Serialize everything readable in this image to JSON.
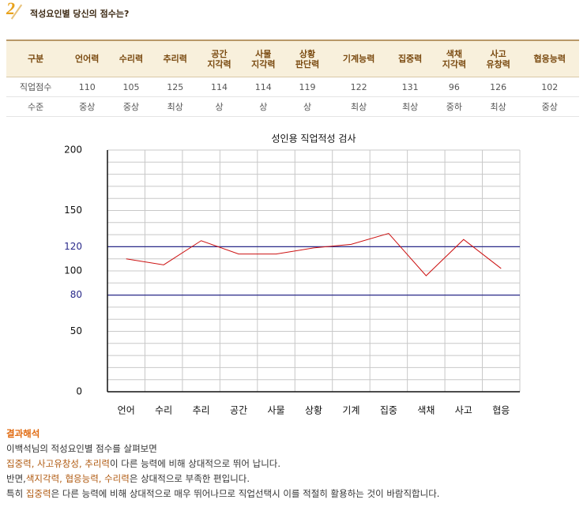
{
  "header": {
    "number": "2",
    "title": "적성요인별 당신의 점수는?"
  },
  "table": {
    "columns": [
      "구분",
      "언어력",
      "수리력",
      "추리력",
      "공간\n지각력",
      "사물\n지각력",
      "상황\n판단력",
      "기계능력",
      "집중력",
      "색채\n지각력",
      "사고\n유창력",
      "협응능력"
    ],
    "rows": [
      [
        "직업점수",
        110,
        105,
        125,
        114,
        114,
        119,
        122,
        131,
        96,
        126,
        102
      ],
      [
        "수준",
        "중상",
        "중상",
        "최상",
        "상",
        "상",
        "상",
        "최상",
        "최상",
        "중하",
        "최상",
        "중상"
      ]
    ]
  },
  "chart_data": {
    "type": "line",
    "title": "성인용 직업적성 검사",
    "categories": [
      "언어",
      "수리",
      "추리",
      "공간",
      "사물",
      "상황",
      "기계",
      "집중",
      "색채",
      "사고",
      "협응"
    ],
    "series": [
      {
        "name": "직업점수",
        "color": "#cc1111",
        "values": [
          110,
          105,
          125,
          114,
          114,
          119,
          122,
          131,
          96,
          126,
          102
        ]
      }
    ],
    "ylim": [
      0,
      200
    ],
    "yticks": [
      0,
      50,
      100,
      150,
      200
    ],
    "minor_yticks": [
      10,
      20,
      30,
      40,
      60,
      70,
      80,
      90,
      110,
      120,
      130,
      140,
      160,
      170,
      180,
      190
    ],
    "reference_lines": [
      {
        "value": 120,
        "color": "#2a2a8a"
      },
      {
        "value": 80,
        "color": "#2a2a8a"
      }
    ],
    "grid": true
  },
  "interpretation": {
    "title": "결과해석",
    "lines": [
      [
        {
          "text": "이백석님의 적성요인별 점수를 살펴보면",
          "em": false
        }
      ],
      [
        {
          "text": "집중력, 사고유창성, 추리력",
          "em": true
        },
        {
          "text": "이 다른 능력에 비해 상대적으로 뛰어 납니다.",
          "em": false
        }
      ],
      [
        {
          "text": "반면,",
          "em": false
        },
        {
          "text": "색지각력, 협응능력, 수리력",
          "em": true
        },
        {
          "text": "은 상대적으로 부족한 편입니다.",
          "em": false
        }
      ],
      [
        {
          "text": "특히 ",
          "em": false
        },
        {
          "text": "집중력",
          "em": true
        },
        {
          "text": "은 다른 능력에 비해 상대적으로 매우 뛰어나므로 직업선택시 이를 적절히 활용하는 것이 바람직합니다.",
          "em": false
        }
      ]
    ]
  }
}
